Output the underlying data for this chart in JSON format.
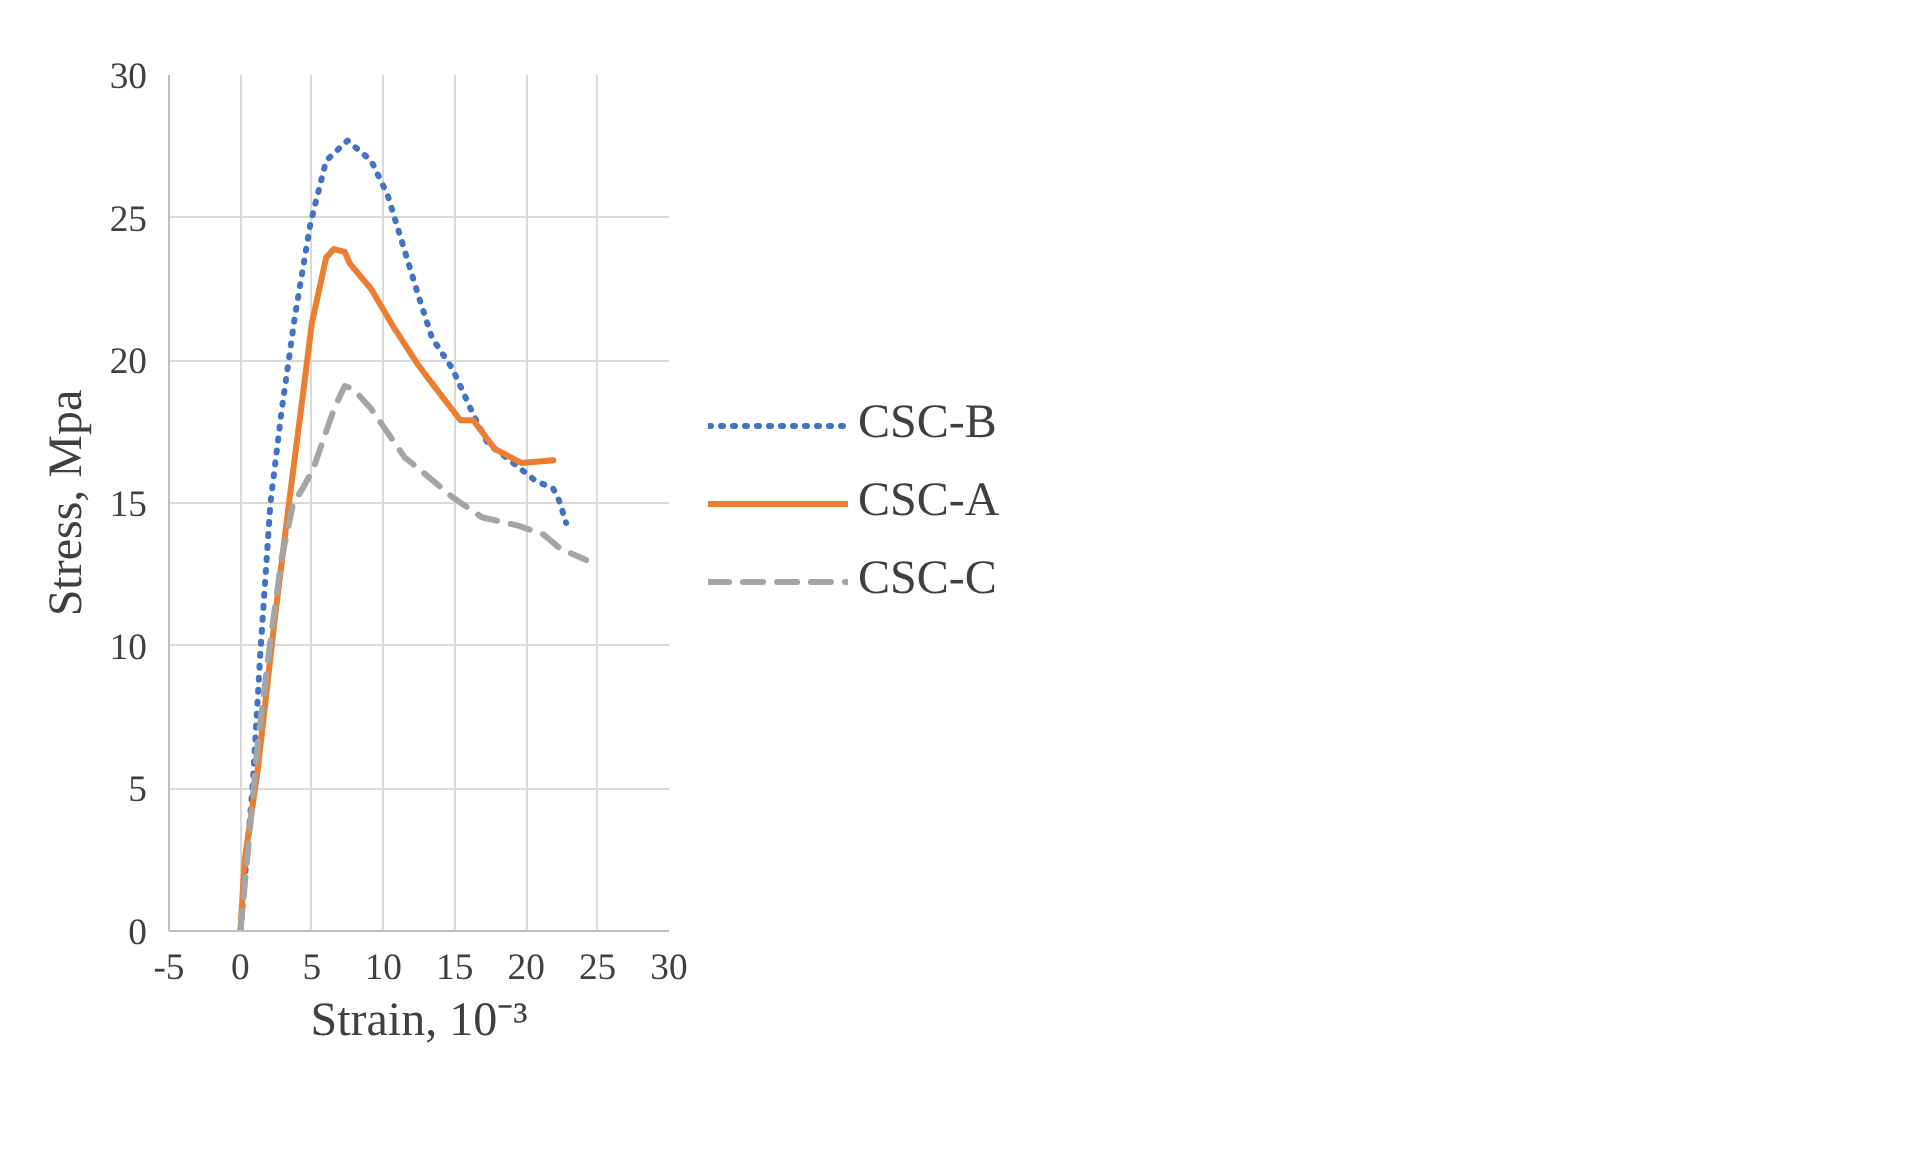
{
  "chart_data": {
    "type": "line",
    "xlabel": "Strain, 10⁻³",
    "ylabel": "Stress, Mpa",
    "xlim": [
      -5,
      30
    ],
    "ylim": [
      0,
      30
    ],
    "xticks": [
      -5,
      0,
      5,
      10,
      15,
      20,
      25,
      30
    ],
    "yticks": [
      0,
      5,
      10,
      15,
      20,
      25,
      30
    ],
    "grid": true,
    "legend": "right",
    "marker": "none",
    "series": [
      {
        "name": "CSC-B",
        "color": "#4472c4",
        "line_style": "dotted",
        "x": [
          0,
          0.86,
          1.4,
          2.1,
          2.9,
          3.8,
          4.9,
          6.0,
          7.5,
          9.15,
          10.3,
          11.4,
          12.5,
          13.4,
          14.85,
          16.3,
          17.3,
          19.1,
          20.6,
          21.9,
          22.3,
          22.8
        ],
        "values": [
          0,
          5.1,
          9.8,
          15,
          18.3,
          21.5,
          24.8,
          27,
          27.7,
          27,
          25.8,
          24,
          22.2,
          20.8,
          19.7,
          18.1,
          17.1,
          16.4,
          15.8,
          15.5,
          15.1,
          14.3
        ]
      },
      {
        "name": "CSC-A",
        "color": "#ed7d31",
        "line_style": "solid",
        "x": [
          0,
          0.3,
          1.2,
          2.35,
          3.45,
          4.35,
          5.0,
          6.0,
          6.55,
          7.3,
          7.65,
          9.15,
          10.8,
          12.5,
          13.4,
          15.4,
          16.3,
          17.8,
          19.7,
          21.9
        ],
        "values": [
          0,
          2.5,
          5.6,
          10.7,
          15.2,
          18.7,
          21.3,
          23.6,
          23.9,
          23.8,
          23.4,
          22.5,
          21.1,
          19.8,
          19.2,
          17.9,
          17.9,
          16.9,
          16.4,
          16.5
        ]
      },
      {
        "name": "CSC-C",
        "color": "#a5a5a5",
        "line_style": "dashed",
        "x": [
          0,
          0.47,
          1.2,
          2.0,
          2.9,
          3.7,
          4.35,
          5.1,
          6.55,
          7.3,
          7.9,
          9.15,
          11.5,
          13.2,
          14.85,
          16.9,
          19.5,
          21.2,
          22.4,
          24.2
        ],
        "values": [
          0,
          2.5,
          6.5,
          9.8,
          13.1,
          15.0,
          15.5,
          16.2,
          18.3,
          19.1,
          19.0,
          18.3,
          16.6,
          15.9,
          15.2,
          14.5,
          14.2,
          13.9,
          13.4,
          13.0
        ]
      }
    ]
  }
}
